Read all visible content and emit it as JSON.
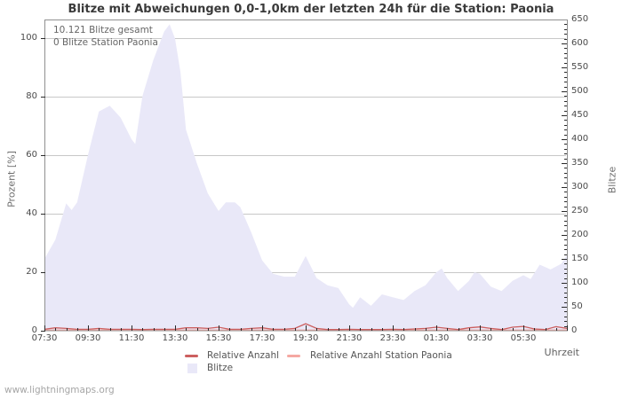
{
  "page": {
    "footer": "www.lightningmaps.org"
  },
  "chart_data": {
    "type": "area",
    "title": "Blitze mit Abweichungen 0,0-1,0km der letzten 24h für die Station: Paonia",
    "xlabel": "Uhrzeit",
    "ylabel_left": "Prozent  [%]",
    "ylabel_right": "Blitze",
    "annotations": [
      "10.121 Blitze gesamt",
      "0 Blitze Station Paonia"
    ],
    "axis_left": {
      "min": 0,
      "max": 100,
      "step": 20,
      "tick_labels": [
        "0",
        "20",
        "40",
        "60",
        "80",
        "100"
      ]
    },
    "axis_right": {
      "min": 0,
      "max": 650,
      "step": 50,
      "tick_labels": [
        "0",
        "50",
        "100",
        "150",
        "200",
        "250",
        "300",
        "350",
        "400",
        "450",
        "500",
        "550",
        "600",
        "650"
      ]
    },
    "x_axis": {
      "start": "07:30",
      "span_hours": 24,
      "major_step_hours": 2,
      "minor_step_hours": 0.5,
      "tick_labels": [
        "07:30",
        "09:30",
        "11:30",
        "13:30",
        "15:30",
        "17:30",
        "19:30",
        "21:30",
        "23:30",
        "01:30",
        "03:30",
        "05:30"
      ]
    },
    "grid": {
      "horizontal": true,
      "vertical": false,
      "color": "#c8c8c8"
    },
    "frame_color": "#909090",
    "tick_color": "#2a2a2a",
    "legend_position": "bottom",
    "series": [
      {
        "name": "Blitze",
        "type": "area",
        "axis": "right",
        "color": "#e9e8f8",
        "points": [
          [
            0,
            150
          ],
          [
            0.5,
            190
          ],
          [
            1.0,
            266
          ],
          [
            1.25,
            252
          ],
          [
            1.5,
            268
          ],
          [
            2.0,
            367
          ],
          [
            2.5,
            458
          ],
          [
            3.0,
            470
          ],
          [
            3.5,
            445
          ],
          [
            4.0,
            400
          ],
          [
            4.17,
            390
          ],
          [
            4.5,
            490
          ],
          [
            5.0,
            565
          ],
          [
            5.5,
            625
          ],
          [
            5.75,
            640
          ],
          [
            6.0,
            610
          ],
          [
            6.25,
            540
          ],
          [
            6.5,
            420
          ],
          [
            7.0,
            350
          ],
          [
            7.5,
            287
          ],
          [
            8.0,
            250
          ],
          [
            8.33,
            268
          ],
          [
            8.75,
            268
          ],
          [
            9.0,
            258
          ],
          [
            9.5,
            205
          ],
          [
            10.0,
            147
          ],
          [
            10.5,
            119
          ],
          [
            11.0,
            113
          ],
          [
            11.5,
            113
          ],
          [
            12.0,
            156
          ],
          [
            12.5,
            110
          ],
          [
            13.0,
            95
          ],
          [
            13.5,
            89
          ],
          [
            14.0,
            55
          ],
          [
            14.17,
            48
          ],
          [
            14.5,
            70
          ],
          [
            15.0,
            52
          ],
          [
            15.5,
            76
          ],
          [
            16.0,
            70
          ],
          [
            16.5,
            64
          ],
          [
            17.0,
            83
          ],
          [
            17.5,
            95
          ],
          [
            18.0,
            122
          ],
          [
            18.25,
            130
          ],
          [
            18.5,
            110
          ],
          [
            19.0,
            83
          ],
          [
            19.5,
            104
          ],
          [
            19.75,
            122
          ],
          [
            20.0,
            119
          ],
          [
            20.5,
            92
          ],
          [
            21.0,
            83
          ],
          [
            21.5,
            104
          ],
          [
            22.0,
            116
          ],
          [
            22.33,
            108
          ],
          [
            22.75,
            138
          ],
          [
            23.25,
            128
          ],
          [
            23.75,
            140
          ],
          [
            24.0,
            158
          ]
        ]
      },
      {
        "name": "Relative Anzahl",
        "type": "line",
        "axis": "left",
        "color": "#cc5f5f",
        "points": [
          [
            0,
            0.5
          ],
          [
            0.5,
            1.0
          ],
          [
            1.0,
            0.8
          ],
          [
            1.5,
            0.5
          ],
          [
            2.0,
            0.5
          ],
          [
            2.5,
            0.8
          ],
          [
            3.0,
            0.5
          ],
          [
            3.5,
            0.5
          ],
          [
            4.0,
            0.5
          ],
          [
            4.5,
            0.4
          ],
          [
            5.0,
            0.5
          ],
          [
            5.5,
            0.5
          ],
          [
            6.0,
            0.5
          ],
          [
            6.5,
            1.0
          ],
          [
            7.0,
            1.0
          ],
          [
            7.5,
            0.8
          ],
          [
            8.0,
            1.2
          ],
          [
            8.5,
            0.5
          ],
          [
            9.0,
            0.5
          ],
          [
            9.5,
            0.8
          ],
          [
            10.0,
            1.0
          ],
          [
            10.5,
            0.5
          ],
          [
            11.0,
            0.5
          ],
          [
            11.5,
            0.8
          ],
          [
            12.0,
            2.4
          ],
          [
            12.5,
            0.8
          ],
          [
            13.0,
            0.4
          ],
          [
            13.5,
            0.4
          ],
          [
            14.0,
            0.5
          ],
          [
            14.5,
            0.4
          ],
          [
            15.0,
            0.4
          ],
          [
            15.5,
            0.4
          ],
          [
            16.0,
            0.5
          ],
          [
            16.5,
            0.4
          ],
          [
            17.0,
            0.6
          ],
          [
            17.5,
            0.8
          ],
          [
            18.0,
            1.2
          ],
          [
            18.5,
            0.8
          ],
          [
            19.0,
            0.4
          ],
          [
            19.5,
            1.0
          ],
          [
            20.0,
            1.3
          ],
          [
            20.5,
            0.8
          ],
          [
            21.0,
            0.4
          ],
          [
            21.5,
            1.2
          ],
          [
            22.0,
            1.5
          ],
          [
            22.5,
            0.6
          ],
          [
            23.0,
            0.4
          ],
          [
            23.5,
            1.4
          ],
          [
            24.0,
            0.8
          ]
        ]
      },
      {
        "name": "Relative Anzahl Station Paonia",
        "type": "line",
        "axis": "left",
        "color": "#f5a8a2",
        "points": [
          [
            0,
            0
          ],
          [
            24,
            0
          ]
        ]
      }
    ]
  }
}
